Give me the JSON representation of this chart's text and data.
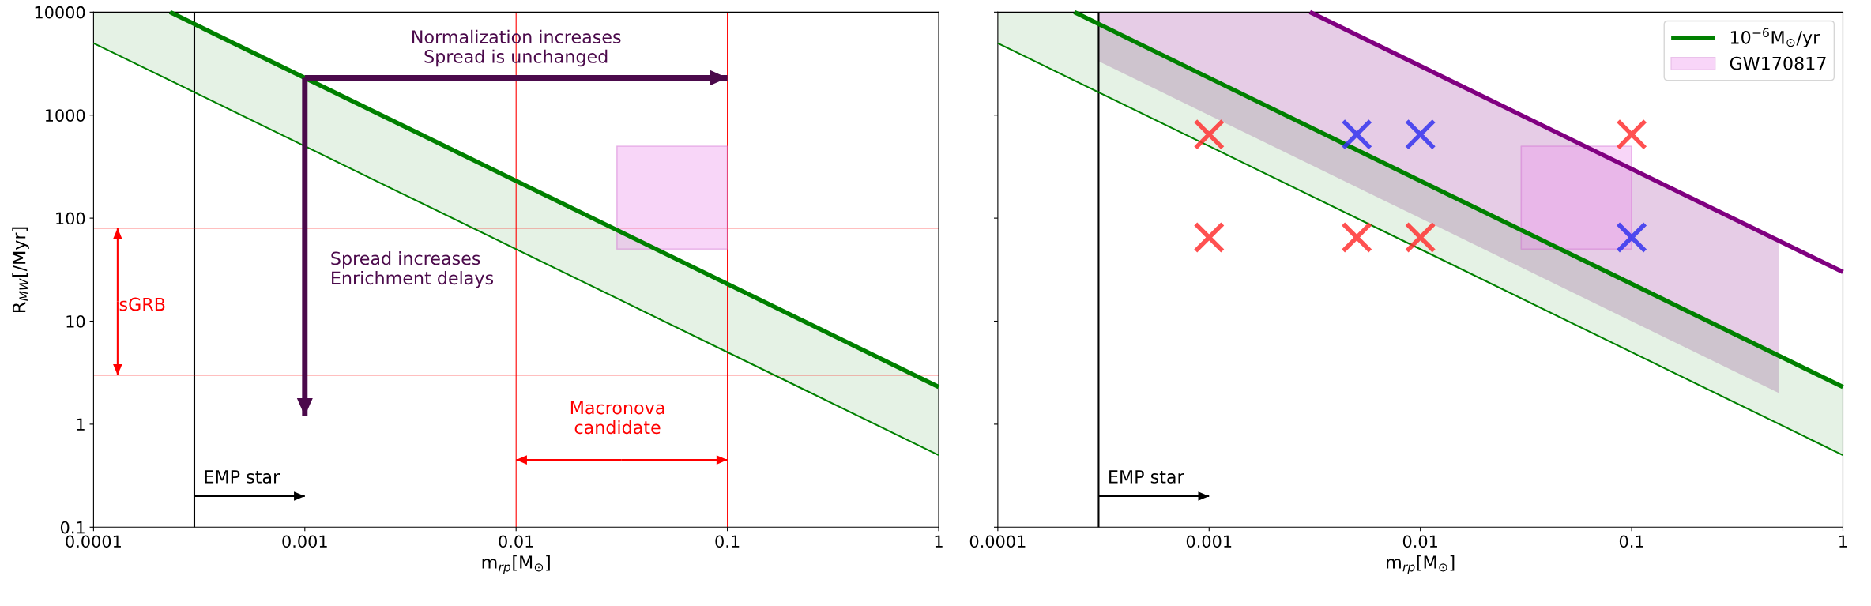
{
  "chart_data": [
    {
      "type": "line",
      "xlabel": "m$_{rp}$[M$_{⊙}$]",
      "ylabel": "R$_{MW}$[/Myr]",
      "log": "xy",
      "grid": false,
      "legend": false,
      "xlim": [
        0.0001,
        1
      ],
      "ylim": [
        0.1,
        10000
      ],
      "xticks": [
        0.0001,
        0.001,
        0.01,
        0.1,
        1
      ],
      "yticks": [
        0.1,
        1,
        10,
        100,
        1000,
        10000
      ],
      "series": [
        {
          "color": "#008000",
          "x": [
            0.0001,
            1
          ],
          "values": [
            5000,
            0.5
          ]
        },
        {
          "color": "#008000",
          "x": [
            0.0001,
            0.00023,
            0.01,
            1
          ],
          "values": [
            null,
            10000,
            230,
            2.3
          ],
          "lower": [
            5000,
            2174,
            50,
            0.5
          ],
          "upper": [
            10000,
            10000,
            230,
            2.3
          ]
        },
        {
          "color": "#ee99ee",
          "x": [
            0.03,
            0.1
          ],
          "values": [
            null,
            null
          ],
          "lower": [
            50,
            50
          ],
          "upper": [
            500,
            500
          ]
        },
        {
          "color": "#4b0a4b",
          "x": [
            0.001,
            0.1
          ],
          "values": [
            2300,
            2300
          ]
        },
        {
          "color": "#4b0a4b",
          "x": [
            0.001,
            0.001
          ],
          "values": [
            2300,
            1.2
          ]
        },
        {
          "color": "#ff0000",
          "x": [
            0.00013,
            0.00013
          ],
          "values": [
            15.5,
            80
          ]
        },
        {
          "color": "#ff0000",
          "x": [
            0.00013,
            0.00013
          ],
          "values": [
            15.5,
            3
          ]
        },
        {
          "color": "#ff0000",
          "x": [
            0.0316,
            0.1
          ],
          "values": [
            0.45,
            0.45
          ]
        },
        {
          "color": "#ff0000",
          "x": [
            0.0316,
            0.01
          ],
          "values": [
            0.45,
            0.45
          ]
        },
        {
          "color": "#000000",
          "x": [
            0.0003,
            0.001
          ],
          "values": [
            0.2,
            0.2
          ]
        }
      ],
      "ref_lines": [
        {
          "axis": "x",
          "value": 0.0003,
          "color": "#000000"
        },
        {
          "axis": "y",
          "value": 80,
          "color": "#ff0000"
        },
        {
          "axis": "y",
          "value": 3,
          "color": "#ff0000"
        },
        {
          "axis": "x",
          "value": 0.01,
          "color": "#ff0000"
        },
        {
          "axis": "x",
          "value": 0.1,
          "color": "#ff0000"
        }
      ],
      "annotations": [
        "Normalization increases\nSpread is unchanged",
        "Spread increases\nEnrichment delays",
        "sGRB",
        "Macronova\ncandidate",
        "EMP star"
      ]
    },
    {
      "type": "line",
      "xlabel": "m$_{rp}$[M$_{⊙}$]",
      "log": "xy",
      "grid": false,
      "legend": "top right",
      "tick_labels": "x",
      "xlim": [
        0.0001,
        1
      ],
      "ylim": [
        0.1,
        10000
      ],
      "xticks": [
        0.0001,
        0.001,
        0.01,
        0.1,
        1
      ],
      "yticks": [
        0.1,
        1,
        10,
        100,
        1000,
        10000
      ],
      "series": [
        {
          "color": "#008000",
          "x": [
            0.0001,
            1
          ],
          "values": [
            5000,
            0.5
          ]
        },
        {
          "color": "#800080",
          "x": [
            0.0003,
            0.003,
            0.5,
            1
          ],
          "values": [
            null,
            10000,
            60,
            30
          ],
          "lower": [
            3333,
            333,
            2,
            null
          ],
          "upper": [
            10000,
            10000,
            60,
            null
          ]
        },
        {
          "name": "10$^{−6}$M$_{⊙}$/yr",
          "color": "#008000",
          "x": [
            0.0001,
            0.00023,
            0.01,
            1
          ],
          "values": [
            null,
            10000,
            230,
            2.3
          ],
          "lower": [
            5000,
            2174,
            50,
            0.5
          ],
          "upper": [
            10000,
            10000,
            230,
            2.3
          ]
        },
        {
          "name": "GW170817",
          "color": "#ee99ee",
          "x": [
            0.03,
            0.1
          ],
          "values": [
            null,
            null
          ],
          "lower": [
            50,
            50
          ],
          "upper": [
            500,
            500
          ]
        },
        {
          "type": "scatter",
          "color": "#ff3333",
          "marker": "cross",
          "x": [
            0.001,
            0.001,
            0.005,
            0.01,
            0.1
          ],
          "values": [
            650,
            65,
            65,
            65,
            650
          ]
        },
        {
          "type": "scatter",
          "color": "#3333ee",
          "marker": "cross",
          "x": [
            0.005,
            0.01,
            0.1
          ],
          "values": [
            650,
            650,
            65
          ]
        },
        {
          "color": "#000000",
          "x": [
            0.0003,
            0.001
          ],
          "values": [
            0.2,
            0.2
          ]
        }
      ],
      "ref_lines": [
        {
          "axis": "x",
          "value": 0.0003,
          "color": "#000000"
        }
      ],
      "annotations": [
        "EMP star"
      ]
    }
  ]
}
